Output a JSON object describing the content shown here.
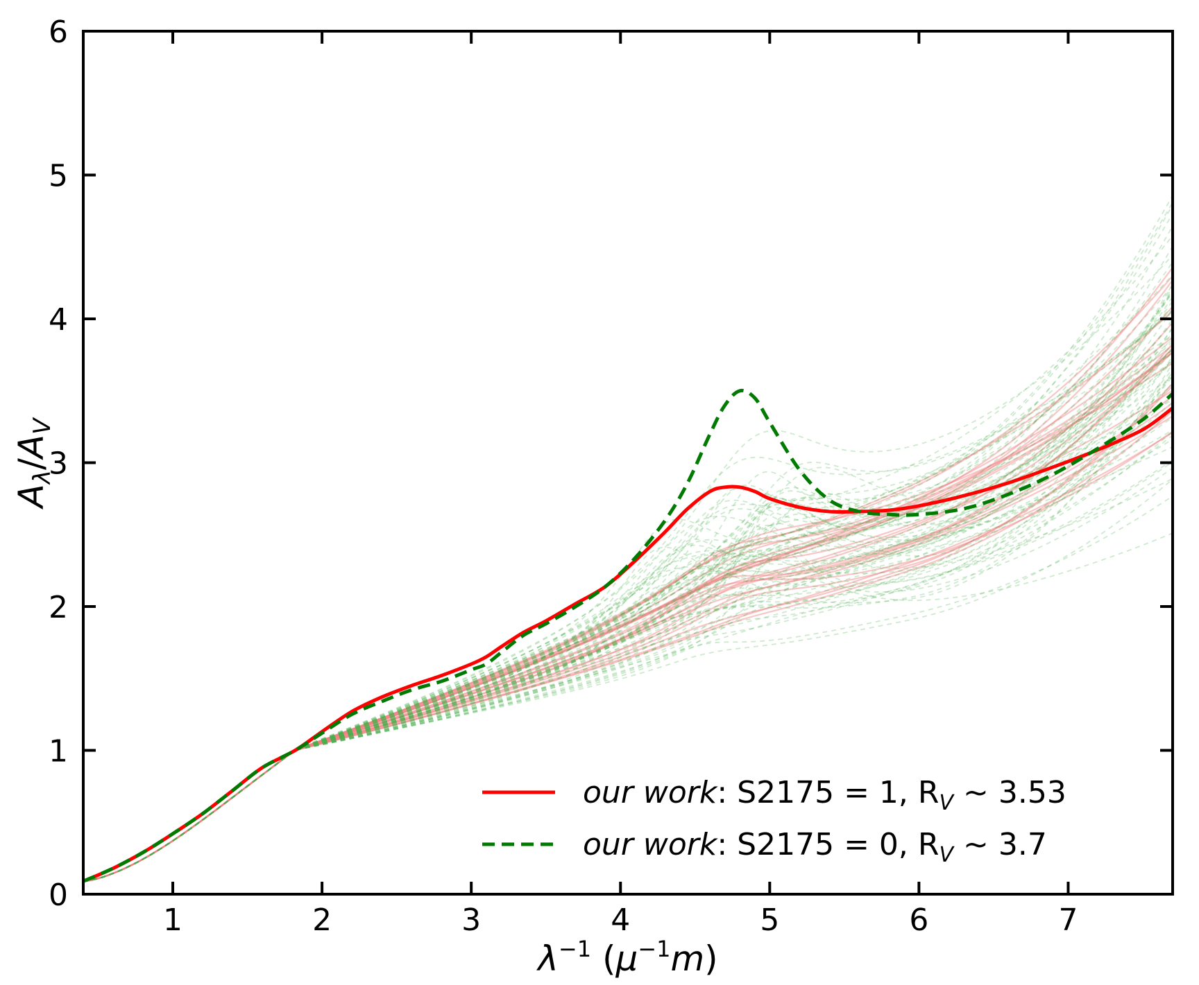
{
  "chart_data": {
    "type": "line",
    "title": "",
    "xlabel": "λ⁻¹ (μ⁻¹m)",
    "ylabel": "Aλ/AV",
    "xlim": [
      0.4,
      7.7
    ],
    "ylim": [
      0,
      6
    ],
    "xticks": [
      1,
      2,
      3,
      4,
      5,
      6,
      7
    ],
    "yticks": [
      0,
      1,
      2,
      3,
      4,
      5,
      6
    ],
    "grid": false,
    "legend_position": "lower-right",
    "x": [
      0.4,
      0.6,
      0.8,
      1.0,
      1.2,
      1.4,
      1.6,
      1.82,
      2.0,
      2.2,
      2.4,
      2.6,
      2.8,
      3.0,
      3.1,
      3.2,
      3.35,
      3.5,
      3.7,
      3.9,
      4.1,
      4.3,
      4.45,
      4.6,
      4.7,
      4.8,
      4.9,
      5.0,
      5.2,
      5.4,
      5.6,
      5.8,
      6.0,
      6.3,
      6.6,
      6.9,
      7.2,
      7.5,
      7.7
    ],
    "series": [
      {
        "name": "our work: S2175 = 1, R_V ~ 3.53",
        "color": "#ff0000",
        "style": "solid",
        "values": [
          0.09,
          0.18,
          0.29,
          0.42,
          0.56,
          0.72,
          0.88,
          1.0,
          1.13,
          1.27,
          1.37,
          1.45,
          1.52,
          1.6,
          1.65,
          1.72,
          1.82,
          1.9,
          2.02,
          2.14,
          2.32,
          2.52,
          2.68,
          2.8,
          2.83,
          2.83,
          2.8,
          2.75,
          2.69,
          2.66,
          2.66,
          2.67,
          2.7,
          2.77,
          2.86,
          2.97,
          3.09,
          3.23,
          3.38
        ]
      },
      {
        "name": "our work: S2175 = 0, R_V ~ 3.7",
        "color": "#007a00",
        "style": "dashed",
        "values": [
          0.09,
          0.18,
          0.29,
          0.42,
          0.56,
          0.72,
          0.88,
          1.0,
          1.12,
          1.25,
          1.34,
          1.42,
          1.48,
          1.56,
          1.6,
          1.68,
          1.8,
          1.88,
          2.0,
          2.14,
          2.34,
          2.6,
          2.86,
          3.2,
          3.4,
          3.5,
          3.45,
          3.28,
          2.95,
          2.74,
          2.66,
          2.64,
          2.64,
          2.68,
          2.78,
          2.92,
          3.1,
          3.3,
          3.48
        ]
      }
    ],
    "background_series": {
      "red_solid_count": 24,
      "green_dashed_count": 70,
      "note": "faint sample curves"
    },
    "legend": [
      {
        "label_prefix": "our work",
        "label_suffix": ":  S2175 = 1,  R",
        "label_sub": "V",
        "label_end": " ~ 3.53"
      },
      {
        "label_prefix": "our work",
        "label_suffix": ":  S2175 = 0,  R",
        "label_sub": "V",
        "label_end": " ~ 3.7"
      }
    ]
  }
}
